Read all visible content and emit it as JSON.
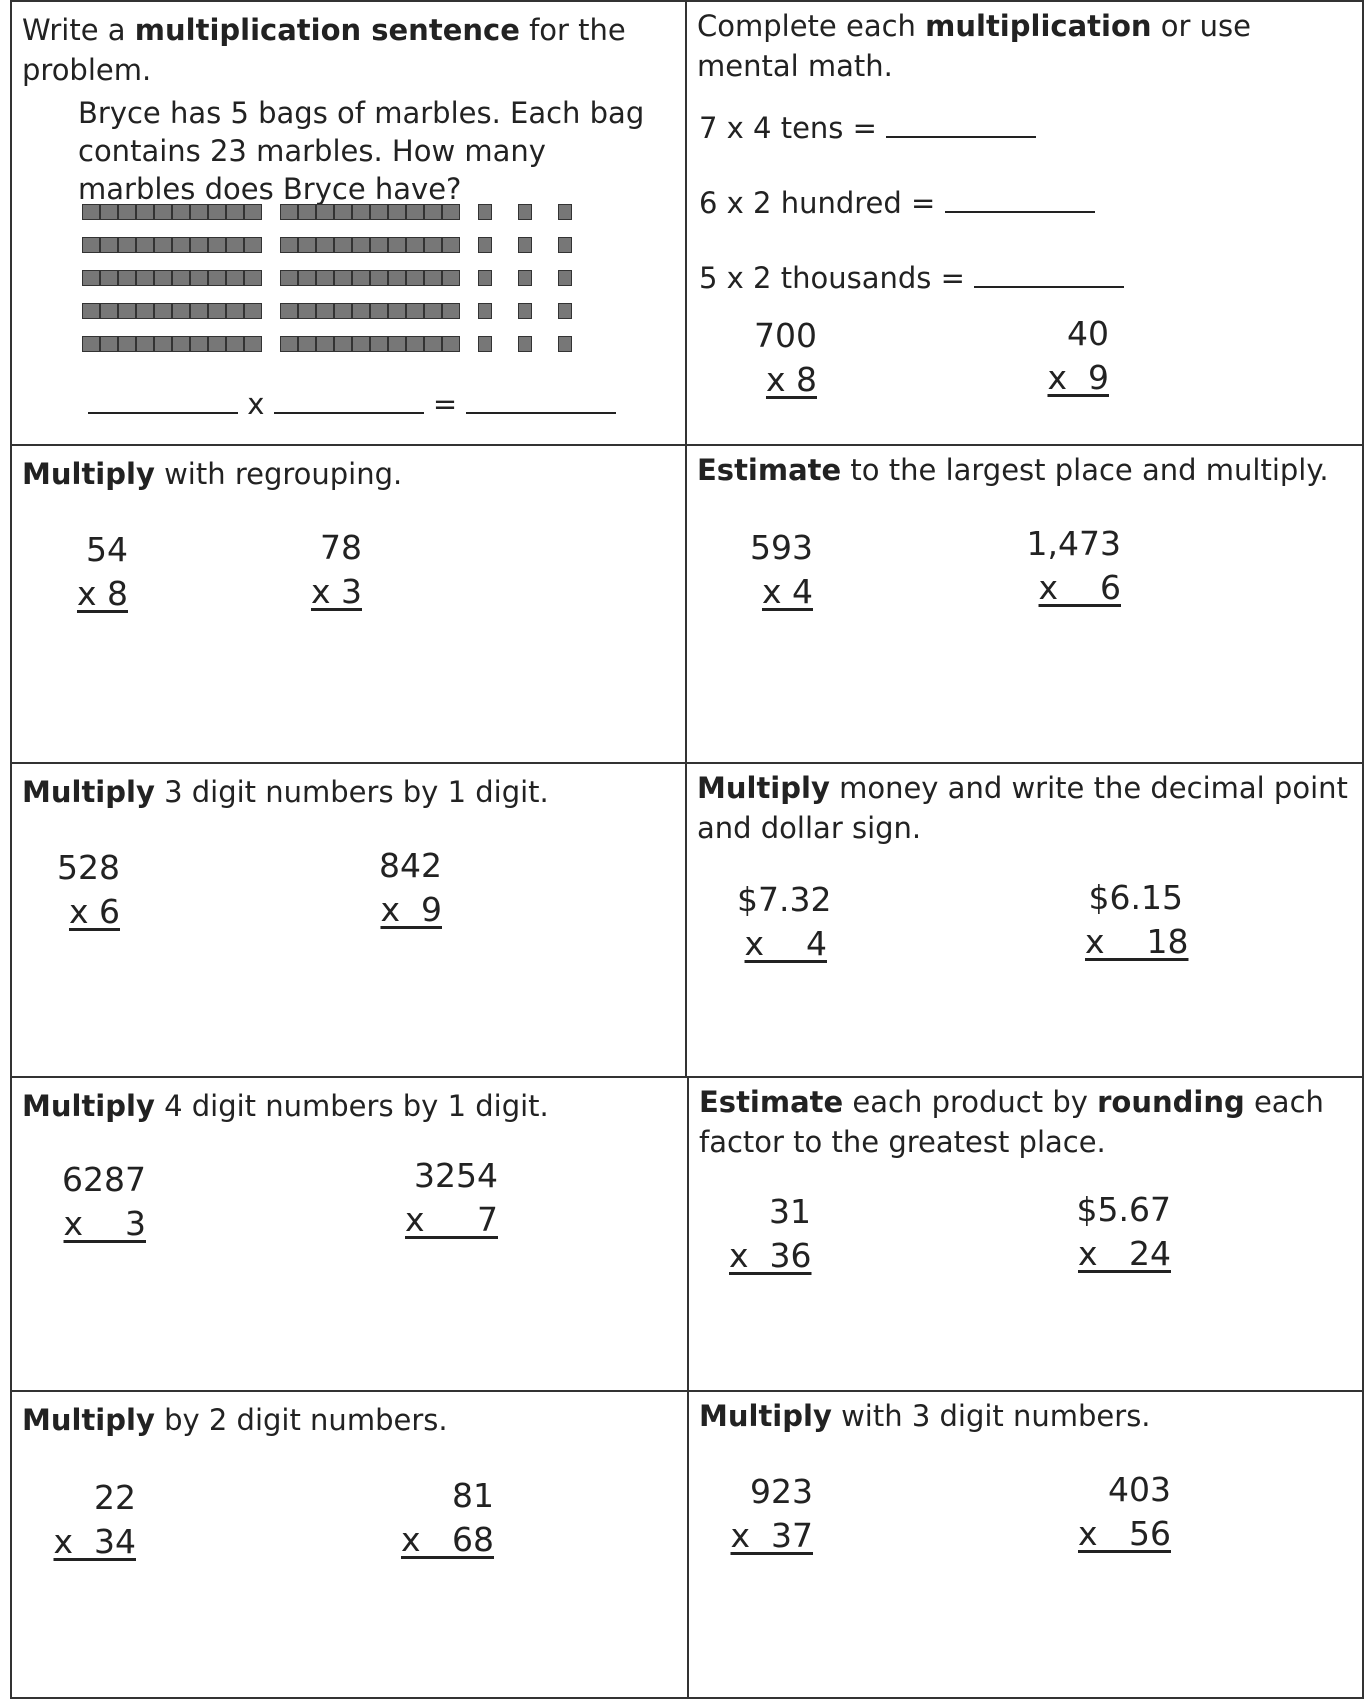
{
  "sections": [
    {
      "pre": "Write a ",
      "bold": "multiplication sentence",
      "post": " for the problem."
    },
    {
      "pre": "Complete each ",
      "bold": "multiplication",
      "post": " or use mental math."
    },
    {
      "pre": "",
      "bold": "Multiply",
      "post": " with regrouping."
    },
    {
      "pre": "",
      "bold": "Estimate",
      "post": " to the largest place and multiply."
    },
    {
      "pre": "",
      "bold": "Multiply",
      "post": " 3 digit numbers by 1 digit."
    },
    {
      "pre": "",
      "bold": "Multiply",
      "post": " money and write the decimal point and dollar sign."
    },
    {
      "pre": "",
      "bold": "Multiply",
      "post": " 4 digit numbers by 1 digit."
    },
    {
      "pre": "",
      "bold": "Estimate",
      "post": " each product by ",
      "bold2": "rounding",
      "post2": " each factor to the greatest place."
    },
    {
      "pre": "",
      "bold": "Multiply",
      "post": " by 2 digit numbers."
    },
    {
      "pre": "",
      "bold": "Multiply",
      "post": " with 3 digit numbers."
    }
  ],
  "story": "Bryce has 5 bags of marbles. Each bag contains 23 marbles. How many marbles does Bryce have?",
  "sentence": {
    "times": "x",
    "equals": "="
  },
  "mental_math": [
    "7 x 4 tens = ",
    "6 x 2 hundred = ",
    "5 x 2 thousands = "
  ],
  "problems": {
    "mm": [
      {
        "top": "700",
        "bot": "x 8"
      },
      {
        "top": "40",
        "bot": "x  9"
      }
    ],
    "regroup": [
      {
        "top": "54",
        "bot": "x 8"
      },
      {
        "top": "78",
        "bot": "x 3"
      }
    ],
    "estimate": [
      {
        "top": "593",
        "bot": "x 4"
      },
      {
        "top": "1,473",
        "bot": "x    6"
      }
    ],
    "three_digit": [
      {
        "top": "528",
        "bot": "x 6"
      },
      {
        "top": "842",
        "bot": "x  9"
      }
    ],
    "money": [
      {
        "top": "$7.32",
        "bot": "x    4"
      },
      {
        "top": "$6.15",
        "bot": "x    18"
      }
    ],
    "four_digit": [
      {
        "top": "6287",
        "bot": "x    3"
      },
      {
        "top": "3254",
        "bot": "x     7"
      }
    ],
    "rounding": [
      {
        "top": "31",
        "bot": "x  36"
      },
      {
        "top": "$5.67",
        "bot": "x   24"
      }
    ],
    "two_digit": [
      {
        "top": "22",
        "bot": "x  34"
      },
      {
        "top": "81",
        "bot": "x   68"
      }
    ],
    "three_by_two": [
      {
        "top": "923",
        "bot": "x  37"
      },
      {
        "top": "403",
        "bot": "x   56"
      }
    ]
  }
}
